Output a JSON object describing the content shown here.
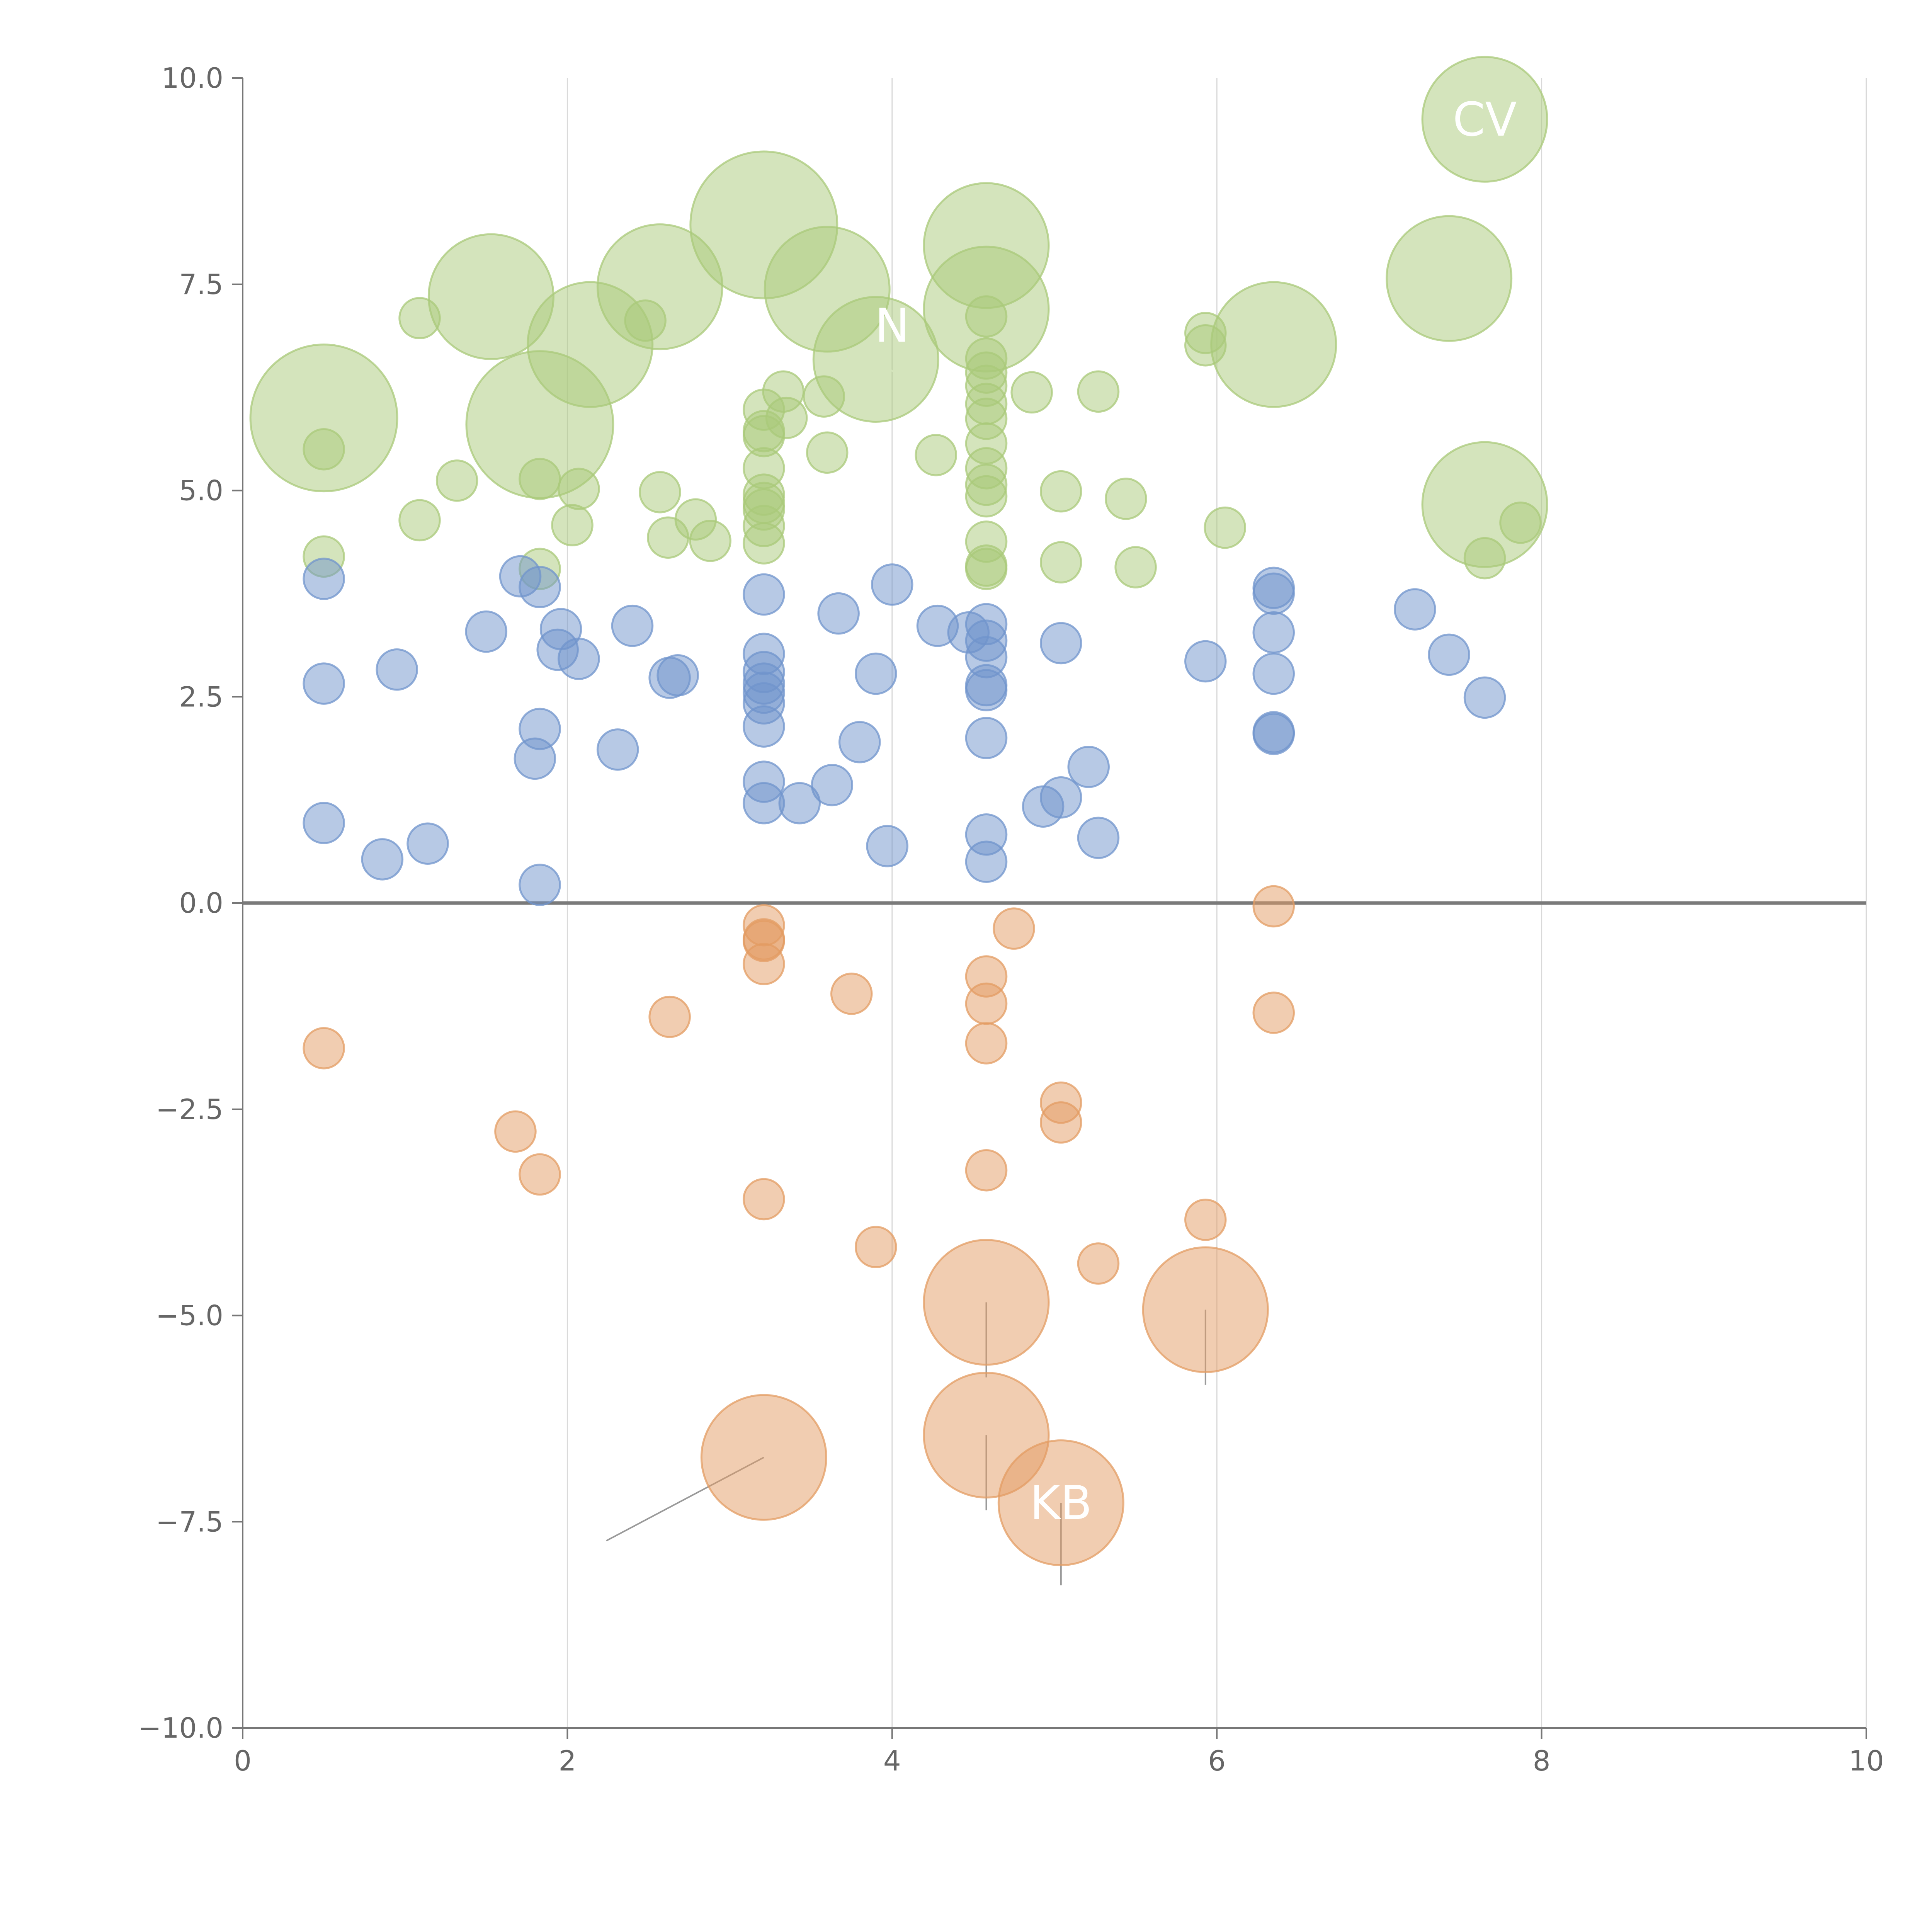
{
  "colors": {
    "positive_high": "#a9c97a",
    "positive_low": "#7094cc",
    "negative": "#e39c63",
    "leader_white": "#ffffff",
    "leader_gray": "#9a9a9a"
  },
  "chart_data": {
    "type": "scatter",
    "title": "",
    "xlabel": "",
    "ylabel": "",
    "xlim": [
      0,
      10
    ],
    "ylim": [
      -10,
      10
    ],
    "xticks": [
      "0",
      "2",
      "4",
      "6",
      "8",
      "10"
    ],
    "yticks": [
      "10.0",
      "7.5",
      "5.0",
      "2.5",
      "0.0",
      "−2.5",
      "−5.0",
      "−7.5",
      "−10.0"
    ],
    "xtick_values": [
      0,
      2,
      4,
      6,
      8,
      10
    ],
    "ytick_values": [
      10,
      7.5,
      5,
      2.5,
      0,
      -2.5,
      -5,
      -7.5,
      -10
    ],
    "vertical_grid": true,
    "reference_line_y": 0,
    "series": [
      {
        "name": "green",
        "points": [
          [
            0.5,
            5.88,
            2
          ],
          [
            0.5,
            5.5,
            0.55
          ],
          [
            0.5,
            4.2,
            0.55
          ],
          [
            1.09,
            7.09,
            0.55
          ],
          [
            1.09,
            4.64,
            0.55
          ],
          [
            1.32,
            5.12,
            0.55
          ],
          [
            1.53,
            7.35,
            1.7
          ],
          [
            1.83,
            5.8,
            2
          ],
          [
            1.83,
            5.14,
            0.55
          ],
          [
            1.83,
            4.05,
            0.55
          ],
          [
            2.03,
            4.58,
            0.55
          ],
          [
            2.07,
            5.02,
            0.55
          ],
          [
            2.14,
            6.77,
            1.7
          ],
          [
            2.48,
            7.06,
            0.55
          ],
          [
            2.57,
            7.47,
            1.7
          ],
          [
            2.57,
            4.98,
            0.55
          ],
          [
            2.62,
            4.43,
            0.55
          ],
          [
            2.79,
            4.65,
            0.55
          ],
          [
            2.88,
            4.39,
            0.55
          ],
          [
            3.21,
            8.22,
            2
          ],
          [
            3.21,
            5.98,
            0.55
          ],
          [
            3.21,
            5.72,
            0.55
          ],
          [
            3.21,
            5.66,
            0.55
          ],
          [
            3.21,
            5.27,
            0.55
          ],
          [
            3.21,
            4.95,
            0.55
          ],
          [
            3.21,
            4.85,
            0.55
          ],
          [
            3.21,
            4.77,
            0.55
          ],
          [
            3.21,
            4.57,
            0.55
          ],
          [
            3.21,
            4.36,
            0.55
          ],
          [
            3.33,
            6.2,
            0.55
          ],
          [
            3.35,
            5.88,
            0.55
          ],
          [
            3.58,
            6.14,
            0.55
          ],
          [
            3.6,
            5.46,
            0.55
          ],
          [
            3.6,
            7.44,
            1.7
          ],
          [
            3.9,
            6.59,
            1.7
          ],
          [
            4.27,
            5.43,
            0.55
          ],
          [
            4.58,
            7.97,
            1.7
          ],
          [
            4.58,
            7.2,
            1.7
          ],
          [
            4.58,
            7.11,
            0.55
          ],
          [
            4.58,
            6.6,
            0.55
          ],
          [
            4.58,
            6.43,
            0.55
          ],
          [
            4.58,
            6.27,
            0.55
          ],
          [
            4.58,
            6.05,
            0.55
          ],
          [
            4.58,
            5.87,
            0.55
          ],
          [
            4.58,
            5.57,
            0.55
          ],
          [
            4.58,
            5.27,
            0.55
          ],
          [
            4.58,
            5.07,
            0.55
          ],
          [
            4.58,
            4.93,
            0.55
          ],
          [
            4.58,
            4.38,
            0.55
          ],
          [
            4.58,
            4.09,
            0.55
          ],
          [
            4.58,
            4.05,
            0.55
          ],
          [
            4.86,
            6.19,
            0.55
          ],
          [
            5.04,
            4.99,
            0.55
          ],
          [
            5.04,
            4.13,
            0.55
          ],
          [
            5.27,
            6.2,
            0.55
          ],
          [
            5.44,
            4.9,
            0.55
          ],
          [
            5.5,
            4.07,
            0.55
          ],
          [
            5.93,
            6.91,
            0.55
          ],
          [
            5.93,
            6.76,
            0.55
          ],
          [
            6.05,
            4.55,
            0.55
          ],
          [
            6.35,
            6.77,
            1.7
          ],
          [
            7.43,
            7.57,
            1.7
          ],
          [
            7.65,
            9.5,
            1.7
          ],
          [
            7.65,
            4.83,
            1.7
          ],
          [
            7.65,
            4.18,
            0.55
          ],
          [
            7.87,
            4.61,
            0.55
          ]
        ]
      },
      {
        "name": "blue",
        "points": [
          [
            0.5,
            3.93,
            0.55
          ],
          [
            0.5,
            2.66,
            0.55
          ],
          [
            0.5,
            0.97,
            0.55
          ],
          [
            0.86,
            0.53,
            0.55
          ],
          [
            0.95,
            2.83,
            0.55
          ],
          [
            1.14,
            0.72,
            0.55
          ],
          [
            1.5,
            3.29,
            0.55
          ],
          [
            1.71,
            3.96,
            0.55
          ],
          [
            1.8,
            1.75,
            0.55
          ],
          [
            1.83,
            3.83,
            0.55
          ],
          [
            1.83,
            2.11,
            0.55
          ],
          [
            1.83,
            0.22,
            0.55
          ],
          [
            1.94,
            3.07,
            0.55
          ],
          [
            1.96,
            3.32,
            0.55
          ],
          [
            2.07,
            2.96,
            0.55
          ],
          [
            2.31,
            1.86,
            0.55
          ],
          [
            2.4,
            3.36,
            0.55
          ],
          [
            2.63,
            2.73,
            0.55
          ],
          [
            2.68,
            2.76,
            0.55
          ],
          [
            3.21,
            3.74,
            0.55
          ],
          [
            3.21,
            3.02,
            0.55
          ],
          [
            3.21,
            2.8,
            0.55
          ],
          [
            3.21,
            2.66,
            0.55
          ],
          [
            3.21,
            2.55,
            0.55
          ],
          [
            3.21,
            2.42,
            0.55
          ],
          [
            3.21,
            2.14,
            0.55
          ],
          [
            3.21,
            1.47,
            0.55
          ],
          [
            3.21,
            1.21,
            0.55
          ],
          [
            3.43,
            1.21,
            0.55
          ],
          [
            3.63,
            1.43,
            0.55
          ],
          [
            3.67,
            3.51,
            0.55
          ],
          [
            3.8,
            1.95,
            0.55
          ],
          [
            3.9,
            2.78,
            0.55
          ],
          [
            3.97,
            0.69,
            0.55
          ],
          [
            4.0,
            3.86,
            0.55
          ],
          [
            4.28,
            3.36,
            0.55
          ],
          [
            4.47,
            3.28,
            0.55
          ],
          [
            4.58,
            3.38,
            0.55
          ],
          [
            4.58,
            3.18,
            0.55
          ],
          [
            4.58,
            2.98,
            0.55
          ],
          [
            4.58,
            2.64,
            0.55
          ],
          [
            4.58,
            2.58,
            0.55
          ],
          [
            4.58,
            2.0,
            0.55
          ],
          [
            4.58,
            0.83,
            0.55
          ],
          [
            4.58,
            0.5,
            0.55
          ],
          [
            4.93,
            1.17,
            0.55
          ],
          [
            5.04,
            3.15,
            0.55
          ],
          [
            5.04,
            1.28,
            0.55
          ],
          [
            5.21,
            1.65,
            0.55
          ],
          [
            5.27,
            0.79,
            0.55
          ],
          [
            5.93,
            2.93,
            0.55
          ],
          [
            6.35,
            3.82,
            0.55
          ],
          [
            6.35,
            3.75,
            0.55
          ],
          [
            6.35,
            3.28,
            0.55
          ],
          [
            6.35,
            2.78,
            0.55
          ],
          [
            6.35,
            2.07,
            0.55
          ],
          [
            6.35,
            2.05,
            0.55
          ],
          [
            7.22,
            3.56,
            0.55
          ],
          [
            7.43,
            3.01,
            0.55
          ],
          [
            7.65,
            2.49,
            0.55
          ]
        ]
      },
      {
        "name": "orange",
        "points": [
          [
            0.5,
            -1.76,
            0.55
          ],
          [
            1.68,
            -2.77,
            0.55
          ],
          [
            1.83,
            -3.29,
            0.55
          ],
          [
            2.63,
            -1.38,
            0.55
          ],
          [
            3.21,
            -0.27,
            0.55
          ],
          [
            3.21,
            -0.44,
            0.55
          ],
          [
            3.21,
            -0.46,
            0.55
          ],
          [
            3.21,
            -0.74,
            0.55
          ],
          [
            3.21,
            -3.59,
            0.55
          ],
          [
            3.21,
            -6.72,
            1.7
          ],
          [
            3.75,
            -1.1,
            0.55
          ],
          [
            3.9,
            -4.17,
            0.55
          ],
          [
            4.58,
            -0.89,
            0.55
          ],
          [
            4.58,
            -1.22,
            0.55
          ],
          [
            4.58,
            -1.7,
            0.55
          ],
          [
            4.58,
            -3.24,
            0.55
          ],
          [
            4.58,
            -4.84,
            1.7
          ],
          [
            4.58,
            -6.45,
            1.7
          ],
          [
            4.75,
            -0.31,
            0.55
          ],
          [
            5.04,
            -2.42,
            0.55
          ],
          [
            5.04,
            -2.66,
            0.55
          ],
          [
            5.04,
            -7.27,
            1.7
          ],
          [
            5.27,
            -4.37,
            0.55
          ],
          [
            5.93,
            -3.84,
            0.55
          ],
          [
            5.93,
            -4.93,
            1.7
          ],
          [
            6.35,
            -0.04,
            0.55
          ],
          [
            6.35,
            -1.33,
            0.55
          ]
        ]
      }
    ],
    "annotations": [
      {
        "text": "CV",
        "x": 7.65,
        "y": 9.5
      },
      {
        "text": "N",
        "x": 4.0,
        "y": 7.0
      },
      {
        "text": "KB",
        "x": 5.04,
        "y": -7.27
      }
    ],
    "leader_lines": [
      [
        0.5,
        5.88,
        0.55,
        5.58,
        "white"
      ],
      [
        1.53,
        7.35,
        1.43,
        7.55,
        "white"
      ],
      [
        1.83,
        5.8,
        1.73,
        5.6,
        "white"
      ],
      [
        2.14,
        6.77,
        2.35,
        6.72,
        "white"
      ],
      [
        2.57,
        7.47,
        2.55,
        7.77,
        "white"
      ],
      [
        3.21,
        8.22,
        3.36,
        8.42,
        "white"
      ],
      [
        3.6,
        7.44,
        3.8,
        7.34,
        "white"
      ],
      [
        3.9,
        6.59,
        4.05,
        6.38,
        "white"
      ],
      [
        4.58,
        7.97,
        4.78,
        7.92,
        "white"
      ],
      [
        4.58,
        7.2,
        4.8,
        7.05,
        "white"
      ],
      [
        5.04,
        4.13,
        4.95,
        4.3,
        "white"
      ],
      [
        6.35,
        6.77,
        6.25,
        6.95,
        "white"
      ],
      [
        7.43,
        7.57,
        7.35,
        7.75,
        "white"
      ],
      [
        7.65,
        4.83,
        7.65,
        4.3,
        "white"
      ],
      [
        3.21,
        -6.72,
        2.24,
        -7.73,
        "gray"
      ],
      [
        4.58,
        -4.84,
        4.58,
        -5.75,
        "gray"
      ],
      [
        4.58,
        -6.45,
        4.58,
        -7.36,
        "gray"
      ],
      [
        5.04,
        -7.27,
        5.04,
        -8.27,
        "gray"
      ],
      [
        5.93,
        -4.93,
        5.93,
        -5.84,
        "gray"
      ]
    ]
  }
}
